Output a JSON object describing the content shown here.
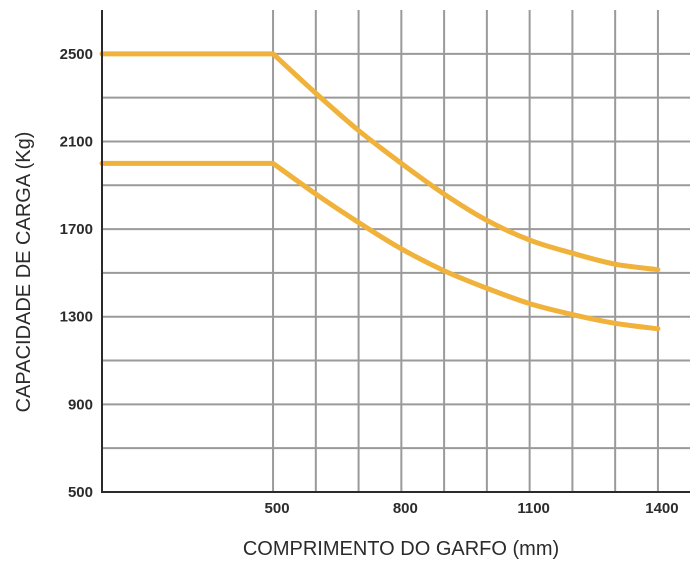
{
  "chart_data": {
    "type": "line",
    "title": "",
    "xlabel": "COMPRIMENTO DO GARFO (mm)",
    "ylabel": "CAPACIDADE DE CARGA (Kg)",
    "xlim": [
      100,
      1475
    ],
    "ylim": [
      500,
      2700
    ],
    "x_ticks": [
      500,
      800,
      1100,
      1400
    ],
    "y_ticks": [
      500,
      900,
      1300,
      1700,
      2100,
      2500
    ],
    "x_grid": [
      500,
      600,
      700,
      800,
      900,
      1000,
      1100,
      1200,
      1300,
      1400
    ],
    "y_grid": [
      700,
      900,
      1100,
      1300,
      1500,
      1700,
      1900,
      2100,
      2300,
      2500
    ],
    "grid": true,
    "series_color": "#f0b23a",
    "series": [
      {
        "x": [
          100,
          500,
          600,
          700,
          800,
          900,
          1000,
          1100,
          1200,
          1300,
          1400
        ],
        "values": [
          2500,
          2500,
          2320,
          2150,
          2000,
          1860,
          1740,
          1650,
          1590,
          1540,
          1515
        ]
      },
      {
        "x": [
          100,
          500,
          600,
          700,
          800,
          900,
          1000,
          1100,
          1200,
          1300,
          1400
        ],
        "values": [
          2000,
          2000,
          1860,
          1730,
          1610,
          1510,
          1430,
          1360,
          1310,
          1270,
          1245
        ]
      }
    ]
  }
}
